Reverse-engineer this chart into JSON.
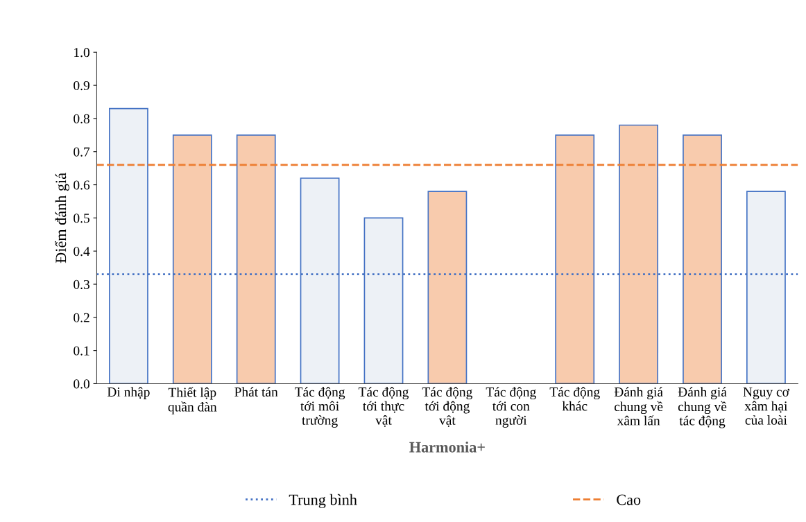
{
  "chart_data": {
    "type": "bar",
    "ylabel": "Điểm đánh giá",
    "xlabel": "Harmonia+",
    "categories": [
      "Di nhập",
      "Thiết lập\nquần đàn",
      "Phát tán",
      "Tác động\ntới môi\ntrường",
      "Tác động\ntới thực\nvật",
      "Tác động\ntới động\nvật",
      "Tác động\ntới con\nngười",
      "Tác động\nkhác",
      "Đánh giá\nchung về\nxâm lấn",
      "Đánh giá\nchung về\ntác động",
      "Nguy cơ\nxâm hại\ncủa loài"
    ],
    "values": [
      0.83,
      0.75,
      0.75,
      0.62,
      0.5,
      0.58,
      null,
      0.75,
      0.78,
      0.75,
      0.58
    ],
    "colors": [
      "#edf1f6",
      "#f8cbad",
      "#f8cbad",
      "#edf1f6",
      "#edf1f6",
      "#f8cbad",
      "#edf1f6",
      "#f8cbad",
      "#f8cbad",
      "#f8cbad",
      "#edf1f6"
    ],
    "ylim": [
      0,
      1
    ],
    "yticks": [
      {
        "value": 0,
        "label": "0.0"
      },
      {
        "value": 0.1,
        "label": "0.1"
      },
      {
        "value": 0.2,
        "label": "0.2"
      },
      {
        "value": 0.3,
        "label": "0.3"
      },
      {
        "value": 0.4,
        "label": "0.4"
      },
      {
        "value": 0.5,
        "label": "0.5"
      },
      {
        "value": 0.6,
        "label": "0.6"
      },
      {
        "value": 0.7,
        "label": "0.7"
      },
      {
        "value": 0.8,
        "label": "0.8"
      },
      {
        "value": 0.9,
        "label": "0.9"
      },
      {
        "value": 1,
        "label": "1.0"
      }
    ],
    "ref_lines": [
      {
        "axis": "y",
        "value": 0.33,
        "label": "Trung bình",
        "color": "#4472c4",
        "line_style": "dotted"
      },
      {
        "axis": "y",
        "value": 0.66,
        "label": "Cao",
        "color": "#ed7d31",
        "line_style": "dashed"
      }
    ],
    "legend": "bottom",
    "grid": false
  }
}
